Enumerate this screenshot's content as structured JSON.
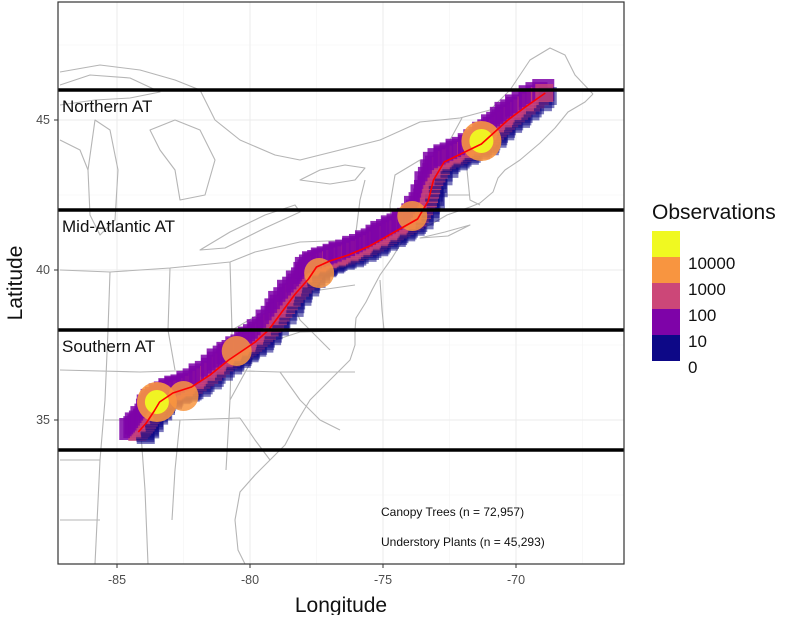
{
  "chart_data": {
    "type": "map",
    "xlabel": "Longitude",
    "ylabel": "Latitude",
    "xlim": [
      -87,
      -66
    ],
    "ylim": [
      30,
      48.5
    ],
    "x_ticks": [
      -85,
      -80,
      -75,
      -70
    ],
    "y_ticks": [
      35,
      40,
      45
    ],
    "x_tick_labels": [
      "-85",
      "-80",
      "-75",
      "-70"
    ],
    "y_tick_labels": [
      "35",
      "40",
      "45"
    ],
    "regions": [
      {
        "name": "Northern AT",
        "boundary_lat": 46
      },
      {
        "name": "Mid-Atlantic AT",
        "boundary_lat": 42
      },
      {
        "name": "Southern AT",
        "boundary_lat": 38
      },
      {
        "name": "",
        "boundary_lat": 34
      }
    ],
    "legend": {
      "title": "Observations",
      "position": "right",
      "labels": [
        "10000",
        "1000",
        "100",
        "10",
        "0"
      ],
      "colors": [
        "#f0f921",
        "#f89540",
        "#cc4778",
        "#7e03a8",
        "#0d0887"
      ]
    },
    "annotations": [
      "Canopy Trees (n = 72,957)",
      "Understory Plants (n = 45,293)"
    ],
    "trail_color": "#ff0000",
    "trail": [
      [
        -84.2,
        34.6
      ],
      [
        -83.9,
        34.9
      ],
      [
        -83.6,
        35.3
      ],
      [
        -83.4,
        35.6
      ],
      [
        -82.9,
        35.9
      ],
      [
        -82.2,
        36.1
      ],
      [
        -81.5,
        36.5
      ],
      [
        -80.8,
        37.0
      ],
      [
        -80.3,
        37.3
      ],
      [
        -79.8,
        37.6
      ],
      [
        -79.3,
        38.0
      ],
      [
        -78.8,
        38.6
      ],
      [
        -78.3,
        39.2
      ],
      [
        -77.8,
        39.7
      ],
      [
        -77.5,
        40.1
      ],
      [
        -77.0,
        40.3
      ],
      [
        -76.3,
        40.5
      ],
      [
        -75.5,
        40.8
      ],
      [
        -74.9,
        41.1
      ],
      [
        -74.3,
        41.4
      ],
      [
        -73.7,
        41.7
      ],
      [
        -73.3,
        42.3
      ],
      [
        -73.1,
        43.0
      ],
      [
        -72.7,
        43.6
      ],
      [
        -72.0,
        43.9
      ],
      [
        -71.3,
        44.2
      ],
      [
        -70.8,
        44.6
      ],
      [
        -70.3,
        45.0
      ],
      [
        -69.7,
        45.4
      ],
      [
        -68.9,
        45.9
      ]
    ],
    "observation_hotspots": [
      {
        "lon": -83.5,
        "lat": 35.6,
        "level": "10000"
      },
      {
        "lon": -71.3,
        "lat": 44.3,
        "level": "10000"
      },
      {
        "lon": -73.9,
        "lat": 41.8,
        "level": "1000"
      },
      {
        "lon": -80.5,
        "lat": 37.3,
        "level": "1000"
      },
      {
        "lon": -82.5,
        "lat": 35.8,
        "level": "1000"
      },
      {
        "lon": -77.4,
        "lat": 39.9,
        "level": "1000"
      }
    ]
  }
}
